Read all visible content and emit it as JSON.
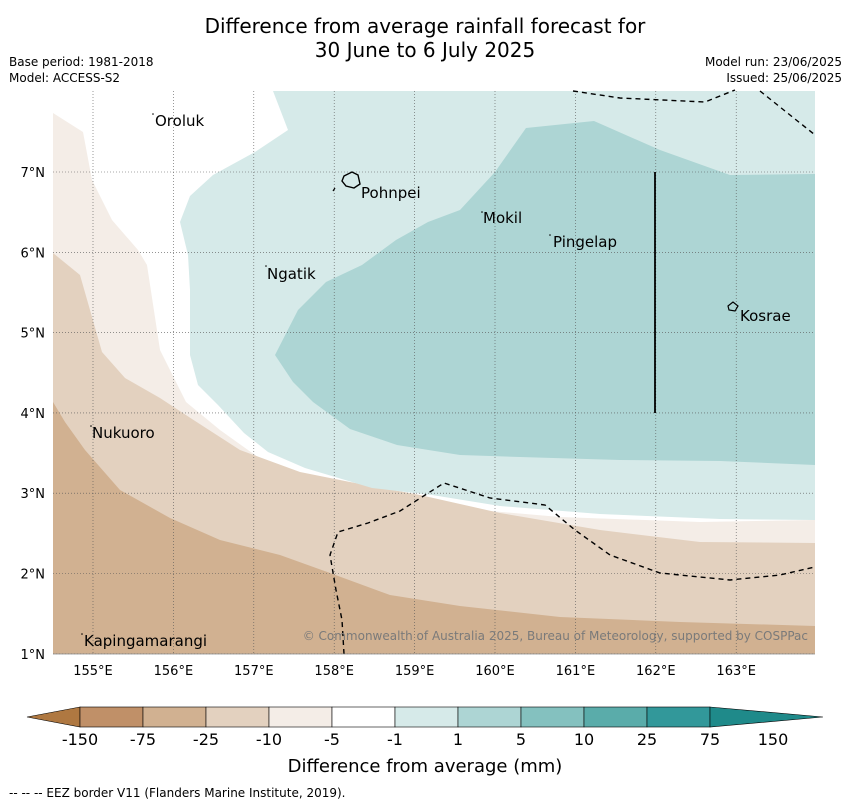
{
  "title": {
    "line1": "Difference from average rainfall forecast for",
    "line2": "30 June to 6 July 2025"
  },
  "meta": {
    "base_period": "Base period: 1981-2018",
    "model": "Model: ACCESS-S2",
    "model_run": "Model run: 23/06/2025",
    "issued": "Issued: 25/06/2025"
  },
  "lat_labels": [
    "7°N",
    "6°N",
    "5°N",
    "4°N",
    "3°N",
    "2°N",
    "1°N"
  ],
  "lon_labels": [
    "155°E",
    "156°E",
    "157°E",
    "158°E",
    "159°E",
    "160°E",
    "161°E",
    "162°E",
    "163°E"
  ],
  "places": [
    "Oroluk",
    "Pohnpei",
    "Mokil",
    "Pingelap",
    "Ngatik",
    "Kosrae",
    "Nukuoro",
    "Kapingamarangi"
  ],
  "copyright": "© Commonwealth of Australia 2025, Bureau of Meteorology, supported by COSPPac",
  "colorbar": {
    "ticks": [
      "-150",
      "-75",
      "-25",
      "-10",
      "-5",
      "-1",
      "1",
      "5",
      "10",
      "25",
      "75",
      "150"
    ],
    "title": "Difference from average (mm)",
    "colors": [
      "#af7841",
      "#c09068",
      "#d1b191",
      "#e3d1bf",
      "#f4ede7",
      "#ffffff",
      "#d6eae9",
      "#add5d4",
      "#84c1bf",
      "#5aacaa",
      "#32989a",
      "#1f8a8a"
    ]
  },
  "footnote": "--  --  -- EEZ border V11 (Flanders Marine Institute, 2019).",
  "colors": {
    "dry_heavy": "#d1b191",
    "dry_mid": "#e3d1bf",
    "dry_light": "#f4ede7",
    "wet_light": "#d6eae9",
    "wet_mid": "#add5d4"
  }
}
